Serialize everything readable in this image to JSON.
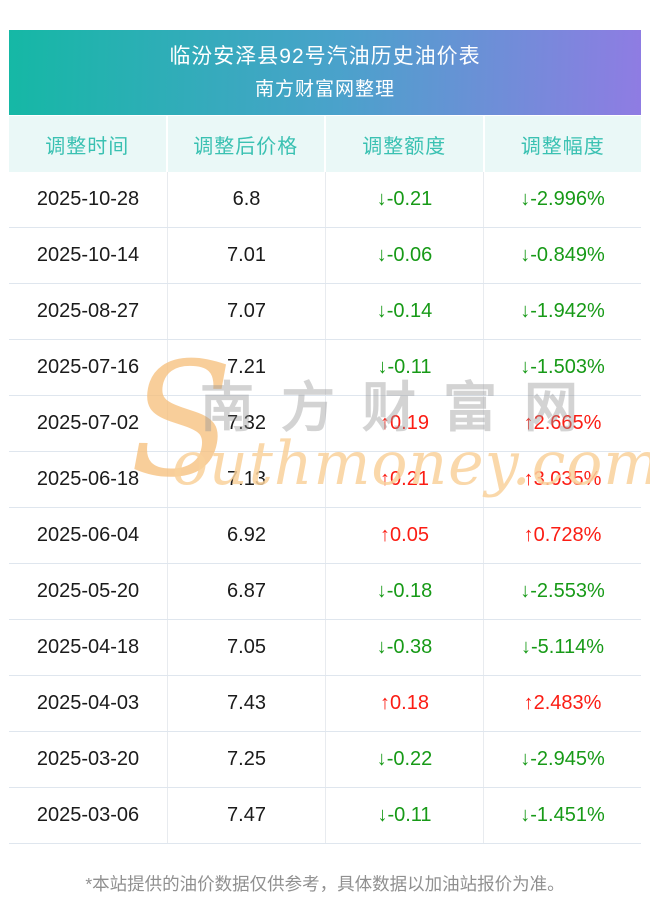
{
  "banner": {
    "title": "临汾安泽县92号汽油历史油价表",
    "subtitle": "南方财富网整理"
  },
  "table": {
    "headers": [
      "调整时间",
      "调整后价格",
      "调整额度",
      "调整幅度"
    ],
    "rows": [
      {
        "date": "2025-10-28",
        "price": "6.8",
        "arrow": "↓",
        "change": "-0.21",
        "percent": "-2.996%",
        "direction": "down"
      },
      {
        "date": "2025-10-14",
        "price": "7.01",
        "arrow": "↓",
        "change": "-0.06",
        "percent": "-0.849%",
        "direction": "down"
      },
      {
        "date": "2025-08-27",
        "price": "7.07",
        "arrow": "↓",
        "change": "-0.14",
        "percent": "-1.942%",
        "direction": "down"
      },
      {
        "date": "2025-07-16",
        "price": "7.21",
        "arrow": "↓",
        "change": "-0.11",
        "percent": "-1.503%",
        "direction": "down"
      },
      {
        "date": "2025-07-02",
        "price": "7.32",
        "arrow": "↑",
        "change": "0.19",
        "percent": "2.665%",
        "direction": "up"
      },
      {
        "date": "2025-06-18",
        "price": "7.13",
        "arrow": "↑",
        "change": "0.21",
        "percent": "3.035%",
        "direction": "up"
      },
      {
        "date": "2025-06-04",
        "price": "6.92",
        "arrow": "↑",
        "change": "0.05",
        "percent": "0.728%",
        "direction": "up"
      },
      {
        "date": "2025-05-20",
        "price": "6.87",
        "arrow": "↓",
        "change": "-0.18",
        "percent": "-2.553%",
        "direction": "down"
      },
      {
        "date": "2025-04-18",
        "price": "7.05",
        "arrow": "↓",
        "change": "-0.38",
        "percent": "-5.114%",
        "direction": "down"
      },
      {
        "date": "2025-04-03",
        "price": "7.43",
        "arrow": "↑",
        "change": "0.18",
        "percent": "2.483%",
        "direction": "up"
      },
      {
        "date": "2025-03-20",
        "price": "7.25",
        "arrow": "↓",
        "change": "-0.22",
        "percent": "-2.945%",
        "direction": "down"
      },
      {
        "date": "2025-03-06",
        "price": "7.47",
        "arrow": "↓",
        "change": "-0.11",
        "percent": "-1.451%",
        "direction": "down"
      }
    ]
  },
  "watermark": {
    "overlay_cn": "南方财富网",
    "overlay_initial": "S",
    "overlay_domain": "outhmoney.com"
  },
  "footer": {
    "note": "*本站提供的油价数据仅供参考，具体数据以加油站报价为准。"
  },
  "colors": {
    "up_red": "#fb1d14",
    "down_green": "#179a17",
    "header_teal_text": "#3ac1b2",
    "header_bg": "#eaf8f7",
    "gradient_start": "#15b8a5",
    "gradient_mid": "#4aa2cb",
    "gradient_end": "#8f7ce3",
    "row_border": "#dfe6ee",
    "col_border": "#e8ebef",
    "body_text": "#1b1b1b",
    "footer_text": "#909090",
    "watermark_gray": "rgba(150,150,150,0.42)",
    "watermark_orange_strong": "rgba(246,190,120,0.75)",
    "watermark_orange_light": "rgba(249,209,155,0.85)"
  }
}
